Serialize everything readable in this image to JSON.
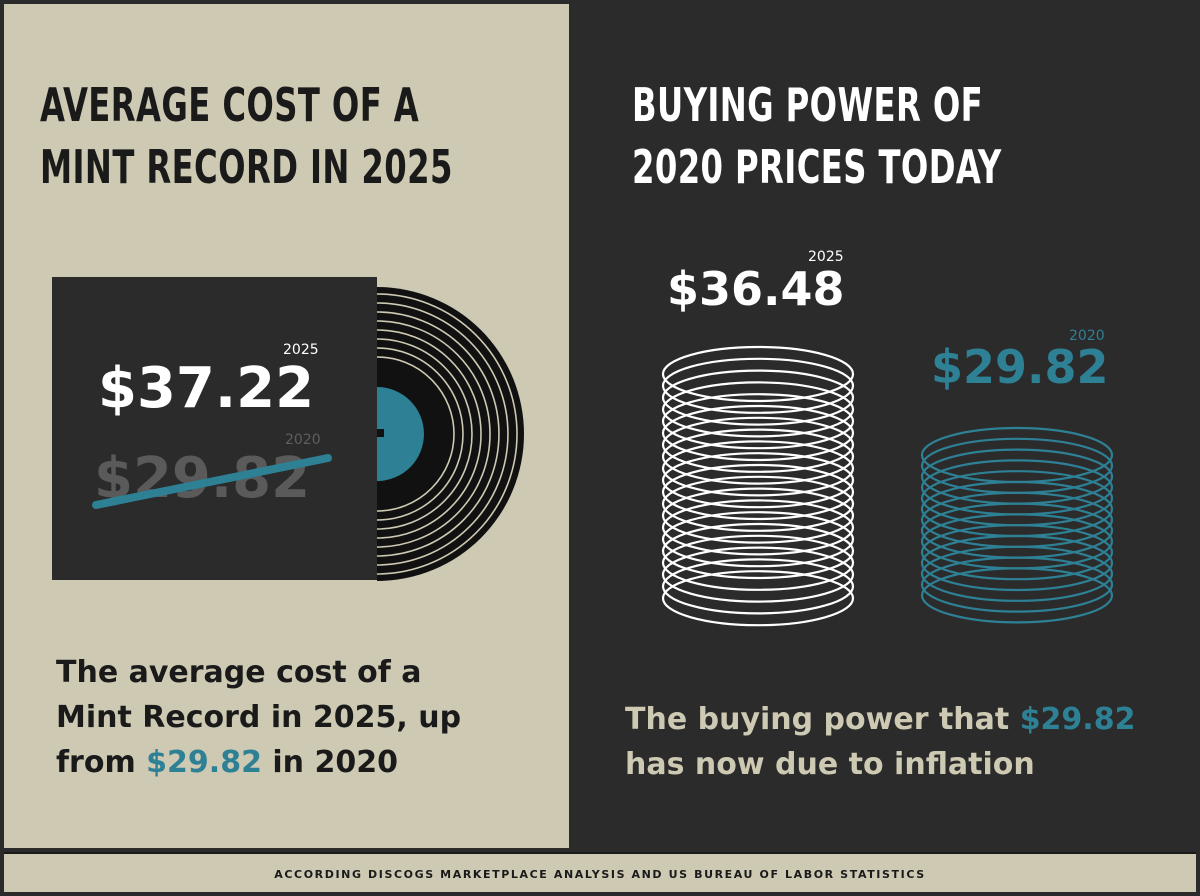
{
  "left": {
    "title_line1": "AVERAGE COST OF A",
    "title_line2": "MINT RECORD IN 2025",
    "sleeve": {
      "year_current": "2025",
      "price_current": "$37.22",
      "year_previous": "2020",
      "price_previous": "$29.82"
    },
    "caption_part1": "The average cost of a",
    "caption_part2": "Mint Record in 2025, up",
    "caption_part3": "from ",
    "caption_highlight": "$29.82",
    "caption_part4": " in 2020"
  },
  "right": {
    "title_line1": "BUYING POWER OF",
    "title_line2": "2020 PRICES TODAY",
    "stack_2025": {
      "year": "2025",
      "price": "$36.48"
    },
    "stack_2020": {
      "year": "2020",
      "price": "$29.82"
    },
    "caption_part1": "The buying power that ",
    "caption_highlight": "$29.82",
    "caption_part2": "has now due to inflation"
  },
  "footer": {
    "source": "ACCORDING DISCOGS MARKETPLACE ANALYSIS AND US BUREAU OF LABOR STATISTICS"
  },
  "colors": {
    "beige": "#cdc9b2",
    "charcoal": "#2b2b2b",
    "teal": "#2e8095",
    "black": "#1a1a1a"
  },
  "icons": {
    "vinyl": "vinyl-record-icon",
    "coin_stack_white": "coin-stack-icon",
    "coin_stack_teal": "coin-stack-icon"
  }
}
